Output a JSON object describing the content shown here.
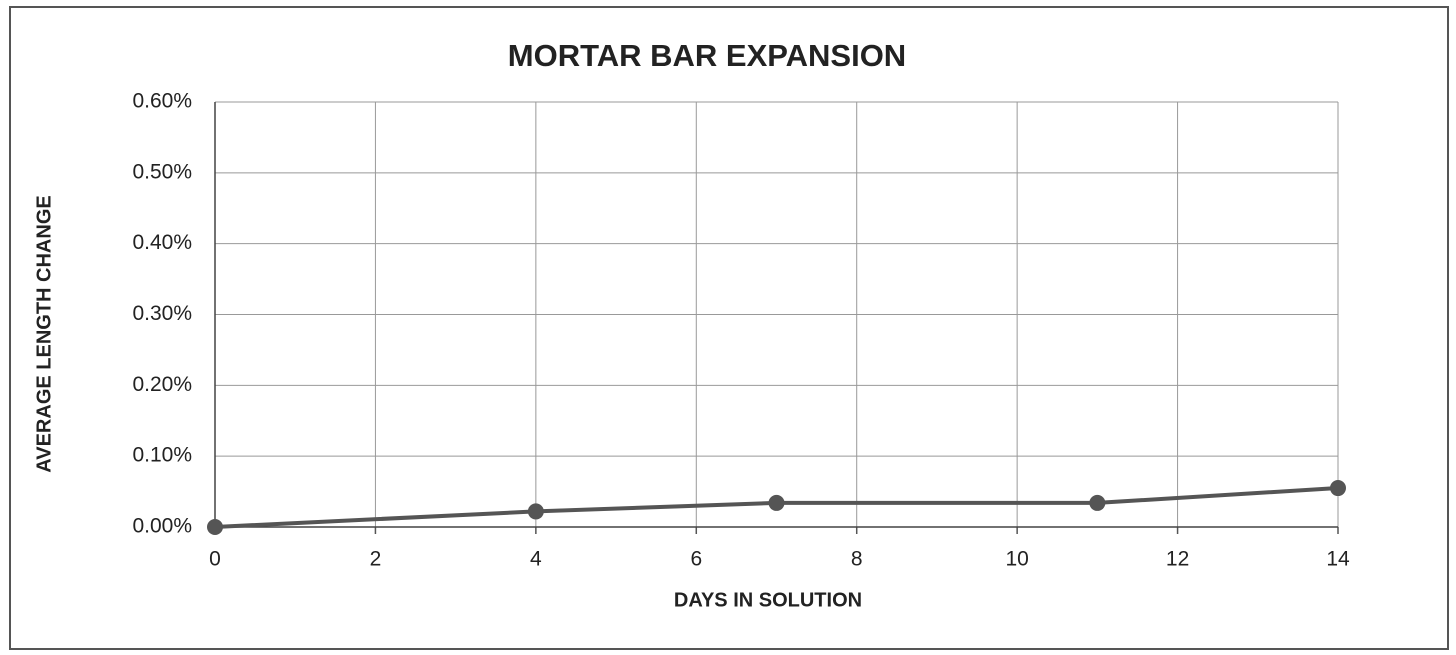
{
  "chart_data": {
    "type": "line",
    "title": "MORTAR BAR EXPANSION",
    "xlabel": "DAYS IN SOLUTION",
    "ylabel": "AVERAGE LENGTH CHANGE",
    "x": [
      0,
      4,
      7,
      11,
      14
    ],
    "series": [
      {
        "color": "#555555",
        "values": [
          0,
          0.022,
          0.034,
          0.034,
          0.055
        ]
      }
    ],
    "xlim": [
      0,
      14
    ],
    "xticks": [
      0,
      2,
      4,
      6,
      8,
      10,
      12,
      14
    ],
    "ylim": [
      0,
      0.6
    ],
    "yticks": [
      {
        "value": 0,
        "label": "0.00%"
      },
      {
        "value": 0.1,
        "label": "0.10%"
      },
      {
        "value": 0.2,
        "label": "0.20%"
      },
      {
        "value": 0.3,
        "label": "0.30%"
      },
      {
        "value": 0.4,
        "label": "0.40%"
      },
      {
        "value": 0.5,
        "label": "0.50%"
      },
      {
        "value": 0.6,
        "label": "0.60%"
      }
    ],
    "grid": true
  }
}
